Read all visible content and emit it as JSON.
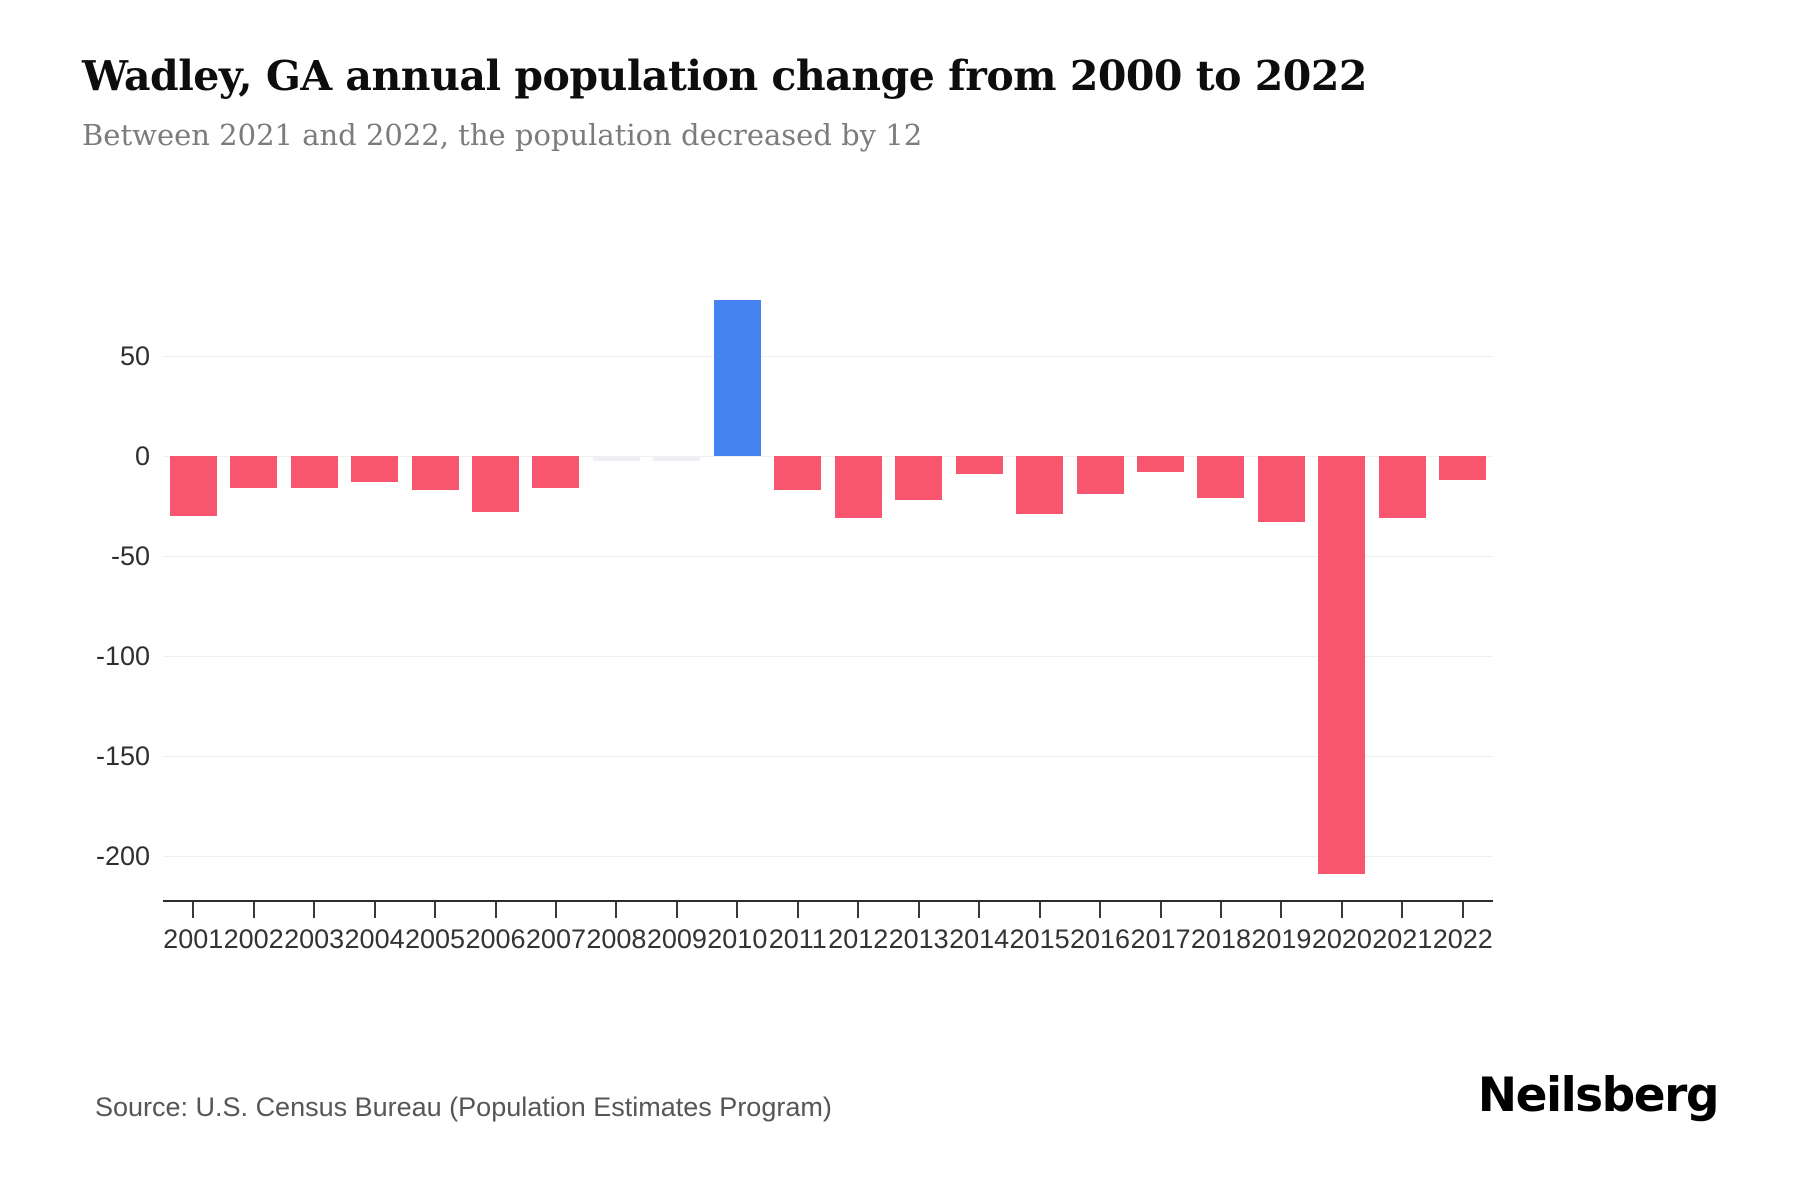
{
  "header": {
    "title": "Wadley, GA annual population change from 2000 to 2022",
    "subtitle": "Between 2021 and 2022, the population decreased by 12"
  },
  "chart_data": {
    "type": "bar",
    "title": "Wadley, GA annual population change from 2000 to 2022",
    "xlabel": "",
    "ylabel": "",
    "categories": [
      "2001",
      "2002",
      "2003",
      "2004",
      "2005",
      "2006",
      "2007",
      "2008",
      "2009",
      "2010",
      "2011",
      "2012",
      "2013",
      "2014",
      "2015",
      "2016",
      "2017",
      "2018",
      "2019",
      "2020",
      "2021",
      "2022"
    ],
    "values": [
      -30,
      -16,
      -16,
      -13,
      -17,
      -28,
      -16,
      0,
      0,
      78,
      -17,
      -31,
      -22,
      -9,
      -29,
      -19,
      -8,
      -21,
      -33,
      -209,
      -31,
      -12
    ],
    "yticks": [
      {
        "value": 50,
        "label": "50"
      },
      {
        "value": 0,
        "label": "0"
      },
      {
        "value": -50,
        "label": "-50"
      },
      {
        "value": -100,
        "label": "-100"
      },
      {
        "value": -150,
        "label": "-150"
      },
      {
        "value": -200,
        "label": "-200"
      }
    ],
    "ylim": [
      -222,
      103
    ],
    "grid": "horizontal",
    "legend": "none",
    "colors": {
      "negative_bar": "#f8566e",
      "positive_bar": "#4583f0",
      "zero_bar": "#eff0f3",
      "gridline": "#eef0f2",
      "axis_line": "#2c2c2c"
    }
  },
  "footer": {
    "source": "Source: U.S. Census Bureau (Population Estimates Program)",
    "brand": "Neilsberg"
  }
}
